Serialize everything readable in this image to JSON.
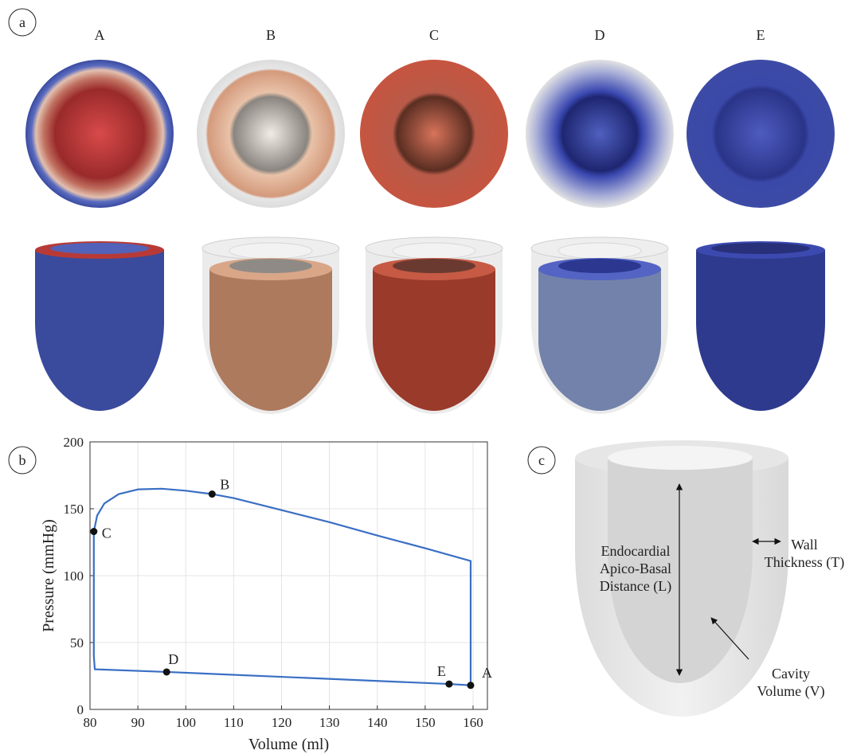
{
  "panels": {
    "a": {
      "label": "a",
      "columns": [
        "A",
        "B",
        "C",
        "D",
        "E"
      ]
    },
    "c": {
      "label": "c",
      "length_label": [
        "Endocardial",
        "Apico-Basal",
        "Distance (L)"
      ],
      "thickness_label": [
        "Wall",
        "Thickness (T)"
      ],
      "volume_label": [
        "Cavity",
        "Volume (V)"
      ]
    }
  },
  "chart_data": {
    "type": "line",
    "panel_label": "b",
    "xlabel": "Volume (ml)",
    "ylabel": "Pressure (mmHg)",
    "x": [
      159.5,
      159.5,
      150,
      140,
      130,
      120,
      110,
      105.5,
      100,
      95,
      90,
      86,
      83,
      81.5,
      80.8,
      80.8,
      81,
      96,
      155,
      159.5
    ],
    "series": [
      {
        "color": "#3a6fc4",
        "values": [
          18,
          111,
          120.5,
          130,
          140,
          149,
          158,
          161,
          163.5,
          165,
          164.5,
          161,
          154,
          145,
          133,
          40,
          30,
          28,
          19,
          18
        ]
      }
    ],
    "points": [
      {
        "label": "A",
        "x": 159.5,
        "y": 18
      },
      {
        "label": "B",
        "x": 105.5,
        "y": 161
      },
      {
        "label": "C",
        "x": 80.8,
        "y": 133
      },
      {
        "label": "D",
        "x": 96,
        "y": 28
      },
      {
        "label": "E",
        "x": 155,
        "y": 19
      }
    ],
    "xlim": [
      80,
      163
    ],
    "ylim": [
      0,
      200
    ],
    "xticks": [
      80,
      90,
      100,
      110,
      120,
      130,
      140,
      150,
      160
    ],
    "yticks": [
      0,
      50,
      100,
      150,
      200
    ],
    "grid": true
  }
}
